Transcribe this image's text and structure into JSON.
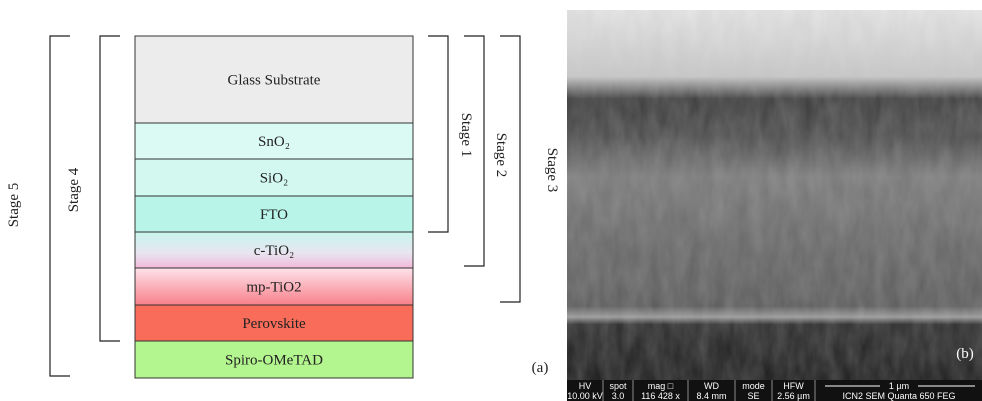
{
  "panel_a": {
    "layers": [
      "Glass Substrate",
      "SnO₂",
      "SiO₂",
      "FTO",
      "c-TiO₂",
      "mp-TiO2",
      "Perovskite",
      "Spiro-OMeTAD"
    ],
    "stages": [
      "Stage 1",
      "Stage 2",
      "Stage 3",
      "Stage 4",
      "Stage 5"
    ],
    "label": "(a)"
  },
  "panel_b": {
    "label": "(b)",
    "info_bar": {
      "headers": [
        "HV",
        "spot",
        "mag □",
        "WD",
        "mode",
        "HFW"
      ],
      "values": [
        "10.00 kV",
        "3.0",
        "116 428 x",
        "8.4 mm",
        "SE",
        "2.56 µm"
      ],
      "scale": "1 µm",
      "instrument": "ICN2 SEM Quanta 650 FEG"
    }
  }
}
